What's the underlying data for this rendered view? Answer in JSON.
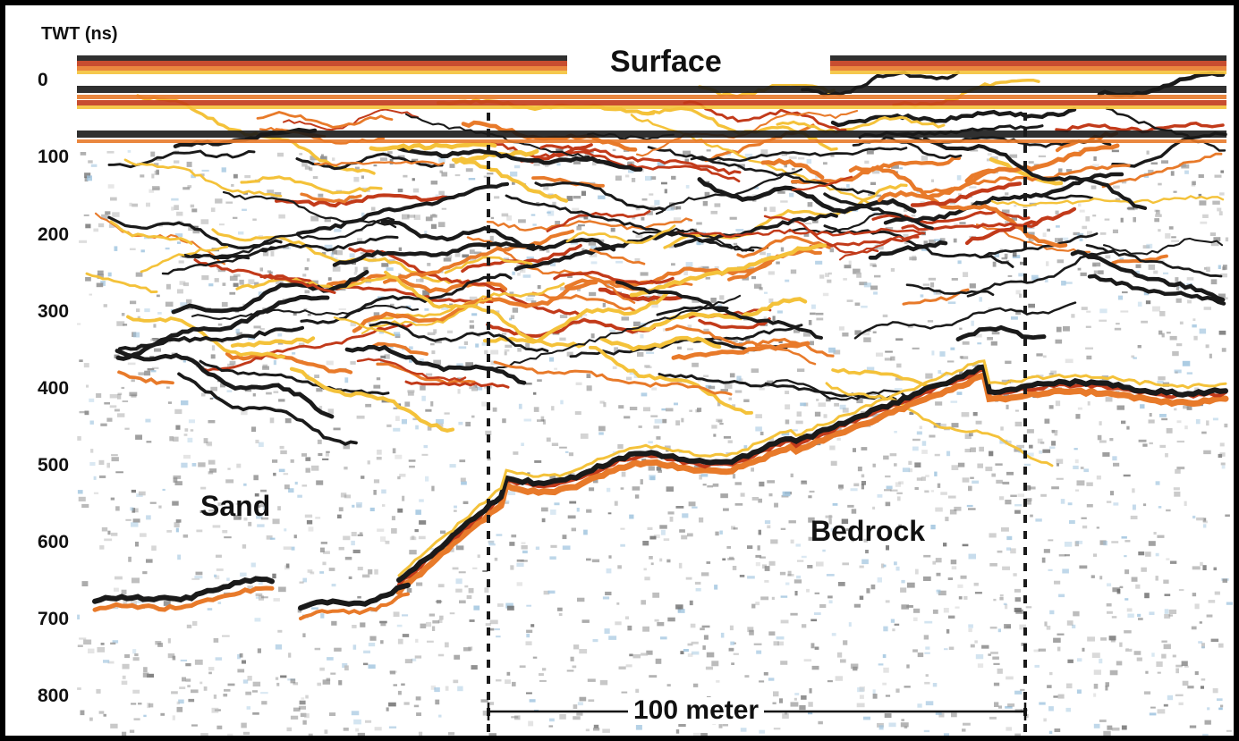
{
  "axis": {
    "label": "TWT (ns)",
    "ticks": [
      "0",
      "100",
      "200",
      "300",
      "400",
      "500",
      "600",
      "700",
      "800"
    ]
  },
  "labels": {
    "surface": "Surface",
    "sand": "Sand",
    "bedrock": "Bedrock",
    "scale": "100 meter"
  },
  "colors": {
    "background": "#ffffff",
    "frame": "#000000",
    "reflection_dark": "#1a1a1a",
    "reflection_orange": "#e87a2a",
    "reflection_red": "#c23a1a",
    "reflection_yellow": "#f4c23a",
    "noise_blue": "#9ec3de",
    "noise_gray": "#8f8f8f"
  }
}
